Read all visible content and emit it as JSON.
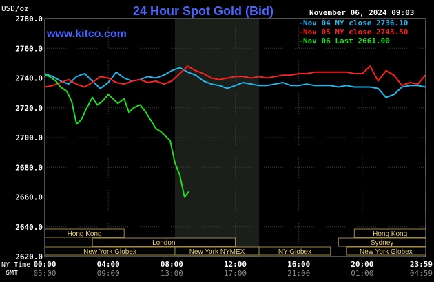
{
  "header": {
    "unit": "USD/oz",
    "title": "24 Hour Spot Gold (Bid)",
    "date": "November 06, 2024 09:03",
    "site": "www.kitco.com"
  },
  "legend": [
    {
      "label": "Nov 04 NY close 2736.10",
      "color": "#22b8f0"
    },
    {
      "label": "Nov 05 NY close 2743.50",
      "color": "#ff2020"
    },
    {
      "label": "Nov 06 Last 2661.00",
      "color": "#20e020"
    }
  ],
  "axis": {
    "row1_label": "NY Time",
    "row2_label": "GMT",
    "x_ticks": [
      {
        "t": 0,
        "label": "00:00",
        "gmt": "05:00"
      },
      {
        "t": 4,
        "label": "04:00",
        "gmt": "09:00"
      },
      {
        "t": 8,
        "label": "08:00",
        "gmt": "13:00"
      },
      {
        "t": 12,
        "label": "12:00",
        "gmt": "17:00"
      },
      {
        "t": 16,
        "label": "16:00",
        "gmt": "21:00"
      },
      {
        "t": 20,
        "label": "20:00",
        "gmt": "01:00"
      },
      {
        "t": 23.983,
        "label": "23:59",
        "gmt": "04:59"
      }
    ],
    "y_ticks": [
      "2780.0",
      "2760.0",
      "2740.0",
      "2720.0",
      "2700.0",
      "2680.0",
      "2660.0",
      "2640.0",
      "2620.0"
    ]
  },
  "sessions": {
    "row1": [
      {
        "label": "Hong Kong",
        "start": 0,
        "end": 5
      },
      {
        "label": "Hong Kong",
        "start": 19.5,
        "end": 24
      }
    ],
    "row2": [
      {
        "label": "London",
        "start": 3,
        "end": 12
      },
      {
        "label": "Sydney",
        "start": 18.5,
        "end": 24
      }
    ],
    "row3": [
      {
        "label": "New York Globex",
        "start": 0,
        "end": 8.2
      },
      {
        "label": "New York NYMEX",
        "start": 8.2,
        "end": 13.5
      },
      {
        "label": "NY Globex",
        "start": 13.5,
        "end": 18
      },
      {
        "label": "New York Globex",
        "start": 19,
        "end": 24
      }
    ]
  },
  "chart_data": {
    "type": "line",
    "title": "24 Hour Spot Gold (Bid)",
    "ylabel": "USD/oz",
    "ylim": [
      2620,
      2780
    ],
    "xlim": [
      0,
      24
    ],
    "x_unit": "hours NY time",
    "highlight_range": [
      8.2,
      13.5
    ],
    "grid": true,
    "legend_position": "top-right",
    "series": [
      {
        "name": "Nov 04 NY close 2736.10",
        "color": "#22b8f0",
        "x": [
          0,
          0.5,
          1,
          1.5,
          2,
          2.5,
          3,
          3.5,
          4,
          4.5,
          5,
          5.5,
          6,
          6.5,
          7,
          7.5,
          8,
          8.5,
          9,
          9.5,
          10,
          10.5,
          11,
          11.5,
          12,
          12.5,
          13,
          13.5,
          14,
          14.5,
          15,
          15.5,
          16,
          16.5,
          17,
          17.5,
          18,
          18.5,
          19,
          19.5,
          20,
          20.5,
          21,
          21.5,
          22,
          22.5,
          23,
          23.5,
          23.983
        ],
        "y": [
          2743,
          2741,
          2738,
          2736,
          2741,
          2743,
          2738,
          2733,
          2737,
          2744,
          2740,
          2738,
          2739,
          2741,
          2740,
          2742,
          2745,
          2747,
          2744,
          2742,
          2738,
          2736,
          2735,
          2733,
          2735,
          2737,
          2736,
          2735,
          2735,
          2736,
          2737,
          2735,
          2735,
          2736,
          2735,
          2735,
          2735,
          2734,
          2735,
          2734,
          2734,
          2734,
          2733,
          2727,
          2729,
          2734,
          2735,
          2735,
          2734
        ]
      },
      {
        "name": "Nov 05 NY close 2743.50",
        "color": "#ff2020",
        "x": [
          0,
          0.5,
          1,
          1.5,
          2,
          2.5,
          3,
          3.5,
          4,
          4.5,
          5,
          5.5,
          6,
          6.5,
          7,
          7.5,
          8,
          8.5,
          9,
          9.5,
          10,
          10.5,
          11,
          11.5,
          12,
          12.5,
          13,
          13.5,
          14,
          14.5,
          15,
          15.5,
          16,
          16.5,
          17,
          17.5,
          18,
          18.5,
          19,
          19.5,
          20,
          20.5,
          21,
          21.5,
          22,
          22.5,
          23,
          23.5,
          23.983
        ],
        "y": [
          2734,
          2735,
          2737,
          2739,
          2736,
          2734,
          2737,
          2741,
          2740,
          2737,
          2736,
          2738,
          2739,
          2737,
          2738,
          2736,
          2738,
          2743,
          2748,
          2745,
          2743,
          2740,
          2739,
          2740,
          2741,
          2741,
          2740,
          2741,
          2740,
          2741,
          2742,
          2742,
          2743,
          2743,
          2744,
          2744,
          2744,
          2744,
          2744,
          2743,
          2743,
          2748,
          2738,
          2745,
          2742,
          2735,
          2737,
          2736,
          2742
        ]
      },
      {
        "name": "Nov 06 Last 2661.00",
        "color": "#20e020",
        "x": [
          0,
          0.3,
          0.7,
          1,
          1.4,
          1.7,
          2,
          2.3,
          2.6,
          3,
          3.3,
          3.6,
          4,
          4.3,
          4.6,
          5,
          5.3,
          5.6,
          6,
          6.3,
          6.6,
          7,
          7.3,
          7.6,
          7.9,
          8.2,
          8.5,
          8.8,
          9.1
        ],
        "y": [
          2742,
          2741,
          2738,
          2734,
          2731,
          2724,
          2709,
          2712,
          2719,
          2727,
          2722,
          2724,
          2729,
          2726,
          2723,
          2726,
          2717,
          2720,
          2722,
          2718,
          2713,
          2706,
          2704,
          2701,
          2698,
          2683,
          2675,
          2660,
          2664
        ]
      }
    ]
  }
}
